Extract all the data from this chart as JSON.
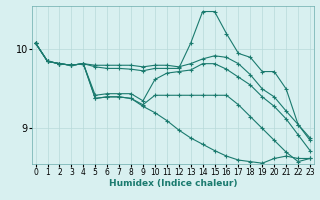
{
  "xlabel": "Humidex (Indice chaleur)",
  "bg_color": "#d8f0f0",
  "line_color": "#1a7a6e",
  "grid_color": "#b8dada",
  "x_ticks": [
    0,
    1,
    2,
    3,
    4,
    5,
    6,
    7,
    8,
    9,
    10,
    11,
    12,
    13,
    14,
    15,
    16,
    17,
    18,
    19,
    20,
    21,
    22,
    23
  ],
  "y_ticks": [
    9,
    10
  ],
  "ylim": [
    8.55,
    10.55
  ],
  "xlim": [
    -0.3,
    23.3
  ],
  "lines": [
    {
      "x": [
        0,
        1,
        2,
        3,
        4,
        5,
        6,
        7,
        8,
        9,
        10,
        11,
        12,
        13,
        14,
        15,
        16,
        17,
        18,
        19,
        20,
        21,
        22,
        23
      ],
      "y": [
        10.08,
        9.85,
        9.82,
        9.8,
        9.82,
        9.8,
        9.8,
        9.8,
        9.8,
        9.78,
        9.8,
        9.8,
        9.78,
        9.82,
        9.88,
        9.92,
        9.9,
        9.82,
        9.68,
        9.5,
        9.4,
        9.22,
        9.05,
        8.88
      ]
    },
    {
      "x": [
        0,
        1,
        2,
        3,
        4,
        5,
        6,
        7,
        8,
        9,
        10,
        11,
        12,
        13,
        14,
        15,
        16,
        17,
        18,
        19,
        20,
        21,
        22,
        23
      ],
      "y": [
        10.08,
        9.85,
        9.82,
        9.8,
        9.82,
        9.78,
        9.76,
        9.76,
        9.75,
        9.73,
        9.76,
        9.76,
        9.76,
        10.08,
        10.48,
        10.48,
        10.2,
        9.95,
        9.9,
        9.72,
        9.72,
        9.5,
        9.05,
        8.85
      ]
    },
    {
      "x": [
        0,
        1,
        2,
        3,
        4,
        5,
        6,
        7,
        8,
        9,
        10,
        11,
        12,
        13,
        14,
        15,
        16,
        17,
        18,
        19,
        20,
        21,
        22,
        23
      ],
      "y": [
        10.08,
        9.85,
        9.82,
        9.8,
        9.82,
        9.42,
        9.44,
        9.44,
        9.44,
        9.35,
        9.62,
        9.7,
        9.72,
        9.74,
        9.82,
        9.82,
        9.75,
        9.65,
        9.55,
        9.4,
        9.28,
        9.12,
        8.92,
        8.72
      ]
    },
    {
      "x": [
        0,
        1,
        2,
        3,
        4,
        5,
        6,
        7,
        8,
        9,
        10,
        11,
        12,
        13,
        14,
        15,
        16,
        17,
        18,
        19,
        20,
        21,
        22,
        23
      ],
      "y": [
        10.08,
        9.85,
        9.82,
        9.8,
        9.82,
        9.38,
        9.4,
        9.4,
        9.38,
        9.3,
        9.42,
        9.42,
        9.42,
        9.42,
        9.42,
        9.42,
        9.42,
        9.3,
        9.15,
        9.0,
        8.85,
        8.7,
        8.58,
        8.62
      ]
    },
    {
      "x": [
        0,
        1,
        2,
        3,
        4,
        5,
        6,
        7,
        8,
        9,
        10,
        11,
        12,
        13,
        14,
        15,
        16,
        17,
        18,
        19,
        20,
        21,
        22,
        23
      ],
      "y": [
        10.08,
        9.85,
        9.82,
        9.8,
        9.82,
        9.38,
        9.4,
        9.4,
        9.38,
        9.28,
        9.2,
        9.1,
        8.98,
        8.88,
        8.8,
        8.72,
        8.65,
        8.6,
        8.58,
        8.56,
        8.62,
        8.65,
        8.62,
        8.62
      ]
    }
  ]
}
